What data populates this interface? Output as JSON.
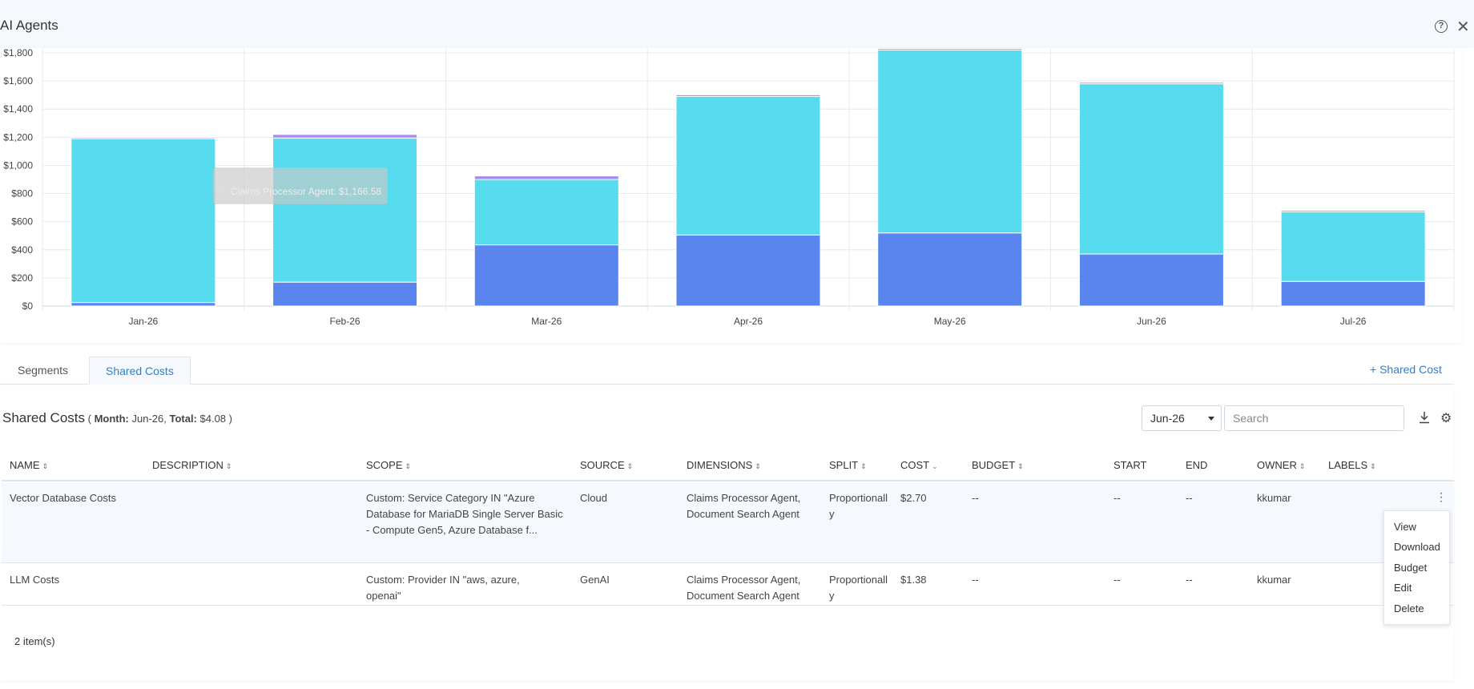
{
  "header": {
    "title": "AI Agents"
  },
  "chart_data": {
    "type": "bar",
    "stacked": true,
    "categories": [
      "Jan-26",
      "Feb-26",
      "Mar-26",
      "Apr-26",
      "May-26",
      "Jun-26",
      "Jul-26"
    ],
    "series": [
      {
        "color": "#5b85ee",
        "values": [
          25,
          170,
          435,
          505,
          520,
          370,
          175
        ]
      },
      {
        "color": "#56dcee",
        "values": [
          1165,
          1025,
          465,
          985,
          1300,
          1210,
          495
        ]
      },
      {
        "color": "#a58af0",
        "values": [
          8,
          25,
          25,
          12,
          10,
          10,
          10
        ]
      }
    ],
    "ylim": [
      0,
      1800
    ],
    "yticks": [
      "$0",
      "$200",
      "$400",
      "$600",
      "$800",
      "$1,000",
      "$1,200",
      "$1,400",
      "$1,600",
      "$1,800"
    ],
    "ytick_values": [
      0,
      200,
      400,
      600,
      800,
      1000,
      1200,
      1400,
      1600,
      1800
    ],
    "grid": true
  },
  "tooltip": {
    "line1": "Jan-26",
    "line2": "Claims Processor Agent: $1,166.58"
  },
  "tabs": [
    {
      "label": "Segments"
    },
    {
      "label": "Shared Costs"
    }
  ],
  "add_shared_cost": "+ Shared Cost",
  "shared_costs": {
    "title": "Shared Costs",
    "open_paren": " ( ",
    "month_label": "Month:",
    "month_value": " Jun-26, ",
    "total_label": "Total:",
    "total_value": " $4.08 )",
    "month_select": "Jun-26",
    "search_placeholder": "Search",
    "columns": [
      "NAME",
      "DESCRIPTION",
      "SCOPE",
      "SOURCE",
      "DIMENSIONS",
      "SPLIT",
      "COST",
      "BUDGET",
      "START",
      "END",
      "OWNER",
      "LABELS"
    ],
    "rows": [
      {
        "name": "Vector Database Costs",
        "description": "",
        "scope": "Custom: Service Category IN \"Azure Database for MariaDB Single Server Basic - Compute Gen5, Azure Database f...",
        "source": "Cloud",
        "dimensions": "Claims Processor Agent, Document Search Agent",
        "split": "Proportionally",
        "cost": "$2.70",
        "budget": "--",
        "start": "--",
        "end": "--",
        "owner": "kkumar",
        "labels": ""
      },
      {
        "name": "LLM Costs",
        "description": "",
        "scope": "Custom: Provider IN \"aws, azure, openai\"",
        "source": "GenAI",
        "dimensions": "Claims Processor Agent, Document Search Agent",
        "split": "Proportionally",
        "cost": "$1.38",
        "budget": "--",
        "start": "--",
        "end": "--",
        "owner": "kkumar",
        "labels": ""
      }
    ],
    "item_count": "2 item(s)"
  },
  "context_menu": [
    "View",
    "Download",
    "Budget",
    "Edit",
    "Delete"
  ]
}
